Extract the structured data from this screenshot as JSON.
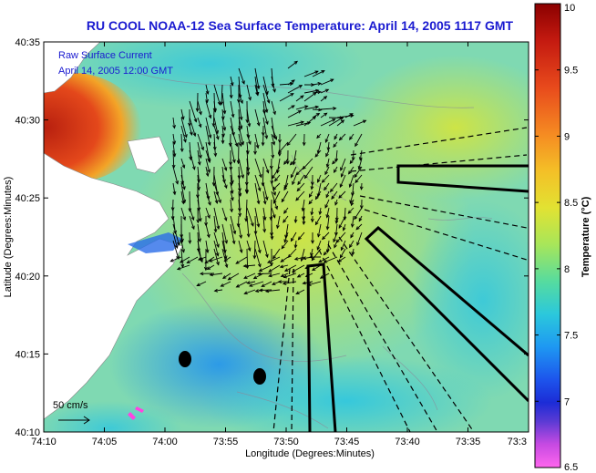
{
  "title": "RU COOL  NOAA-12  Sea Surface Temperature:  April 14, 2005 1117 GMT",
  "overlay": {
    "line1": "Raw Surface Current",
    "line2": "April 14, 2005 12:00 GMT"
  },
  "axes": {
    "xlabel": "Longitude (Degrees:Minutes)",
    "ylabel": "Latitude (Degrees:Minutes)",
    "xticks": [
      "74:10",
      "74:05",
      "74:00",
      "73:55",
      "73:50",
      "73:45",
      "73:40",
      "73:35",
      "73:3"
    ],
    "yticks": [
      "40:35",
      "40:30",
      "40:25",
      "40:20",
      "40:15",
      "40:10"
    ]
  },
  "scale_label": "50 cm/s",
  "colorbar": {
    "label": "Temperature (°C)",
    "ticks": [
      "10",
      "9.5",
      "9",
      "8.5",
      "8",
      "7.5",
      "7",
      "6.5"
    ],
    "colors": [
      "#7a0000",
      "#b51212",
      "#e8421c",
      "#f47b20",
      "#f5a623",
      "#f2d22a",
      "#d9e83a",
      "#a7e65a",
      "#6fe08a",
      "#3fd6b8",
      "#22c4e2",
      "#1e9ff0",
      "#1f6af0",
      "#1b35e0",
      "#2a22c8",
      "#7a3ad8",
      "#c44ae0",
      "#ff66e8"
    ]
  },
  "map": {
    "ocean_color": "#6fd3c6",
    "land_color": "#ffffff",
    "warm_plume_color": "#d83a1a"
  }
}
